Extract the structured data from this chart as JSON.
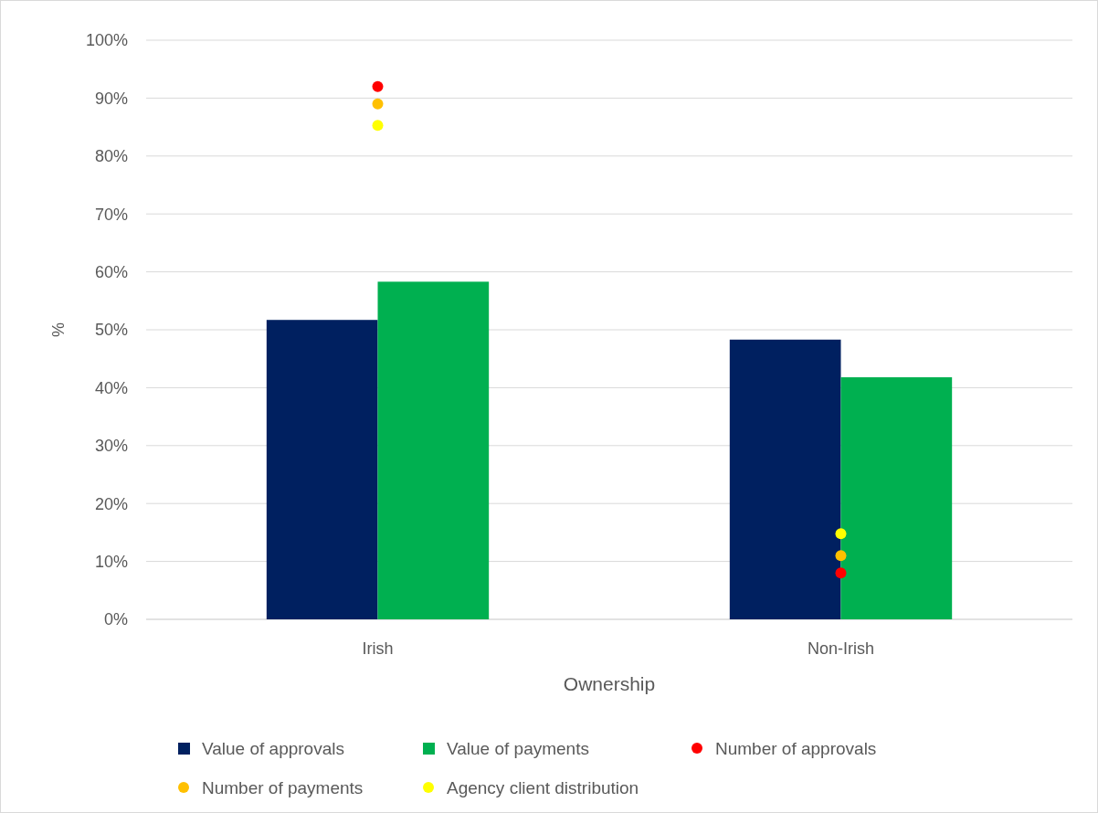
{
  "chart_data": {
    "type": "bar",
    "xlabel": "Ownership",
    "ylabel": "%",
    "categories": [
      "Irish",
      "Non-Irish"
    ],
    "series": [
      {
        "name": "Value of approvals",
        "color": "#002060",
        "values": [
          51.7,
          48.3
        ]
      },
      {
        "name": "Value of payments",
        "color": "#00b050",
        "values": [
          58.3,
          41.8
        ]
      },
      {
        "name": "Number of approvals",
        "type": "scatter",
        "marker": "circle",
        "color": "#ff0000",
        "x": [
          "Irish",
          "Non-Irish"
        ],
        "values": [
          92,
          8
        ]
      },
      {
        "name": "Number of payments",
        "type": "scatter",
        "marker": "circle",
        "color": "#ffc000",
        "x": [
          "Irish",
          "Non-Irish"
        ],
        "values": [
          89,
          11
        ]
      },
      {
        "name": "Agency client distribution",
        "type": "scatter",
        "marker": "circle",
        "color": "#ffff00",
        "x": [
          "Irish",
          "Non-Irish"
        ],
        "values": [
          85.3,
          14.8
        ]
      }
    ],
    "ylim": [
      0,
      100
    ],
    "yticks": [
      {
        "value": 0,
        "label": "0%"
      },
      {
        "value": 10,
        "label": "10%"
      },
      {
        "value": 20,
        "label": "20%"
      },
      {
        "value": 30,
        "label": "30%"
      },
      {
        "value": 40,
        "label": "40%"
      },
      {
        "value": 50,
        "label": "50%"
      },
      {
        "value": 60,
        "label": "60%"
      },
      {
        "value": 70,
        "label": "70%"
      },
      {
        "value": 80,
        "label": "80%"
      },
      {
        "value": 90,
        "label": "90%"
      },
      {
        "value": 100,
        "label": "100%"
      }
    ],
    "grid": "y",
    "legend": "bottom"
  }
}
